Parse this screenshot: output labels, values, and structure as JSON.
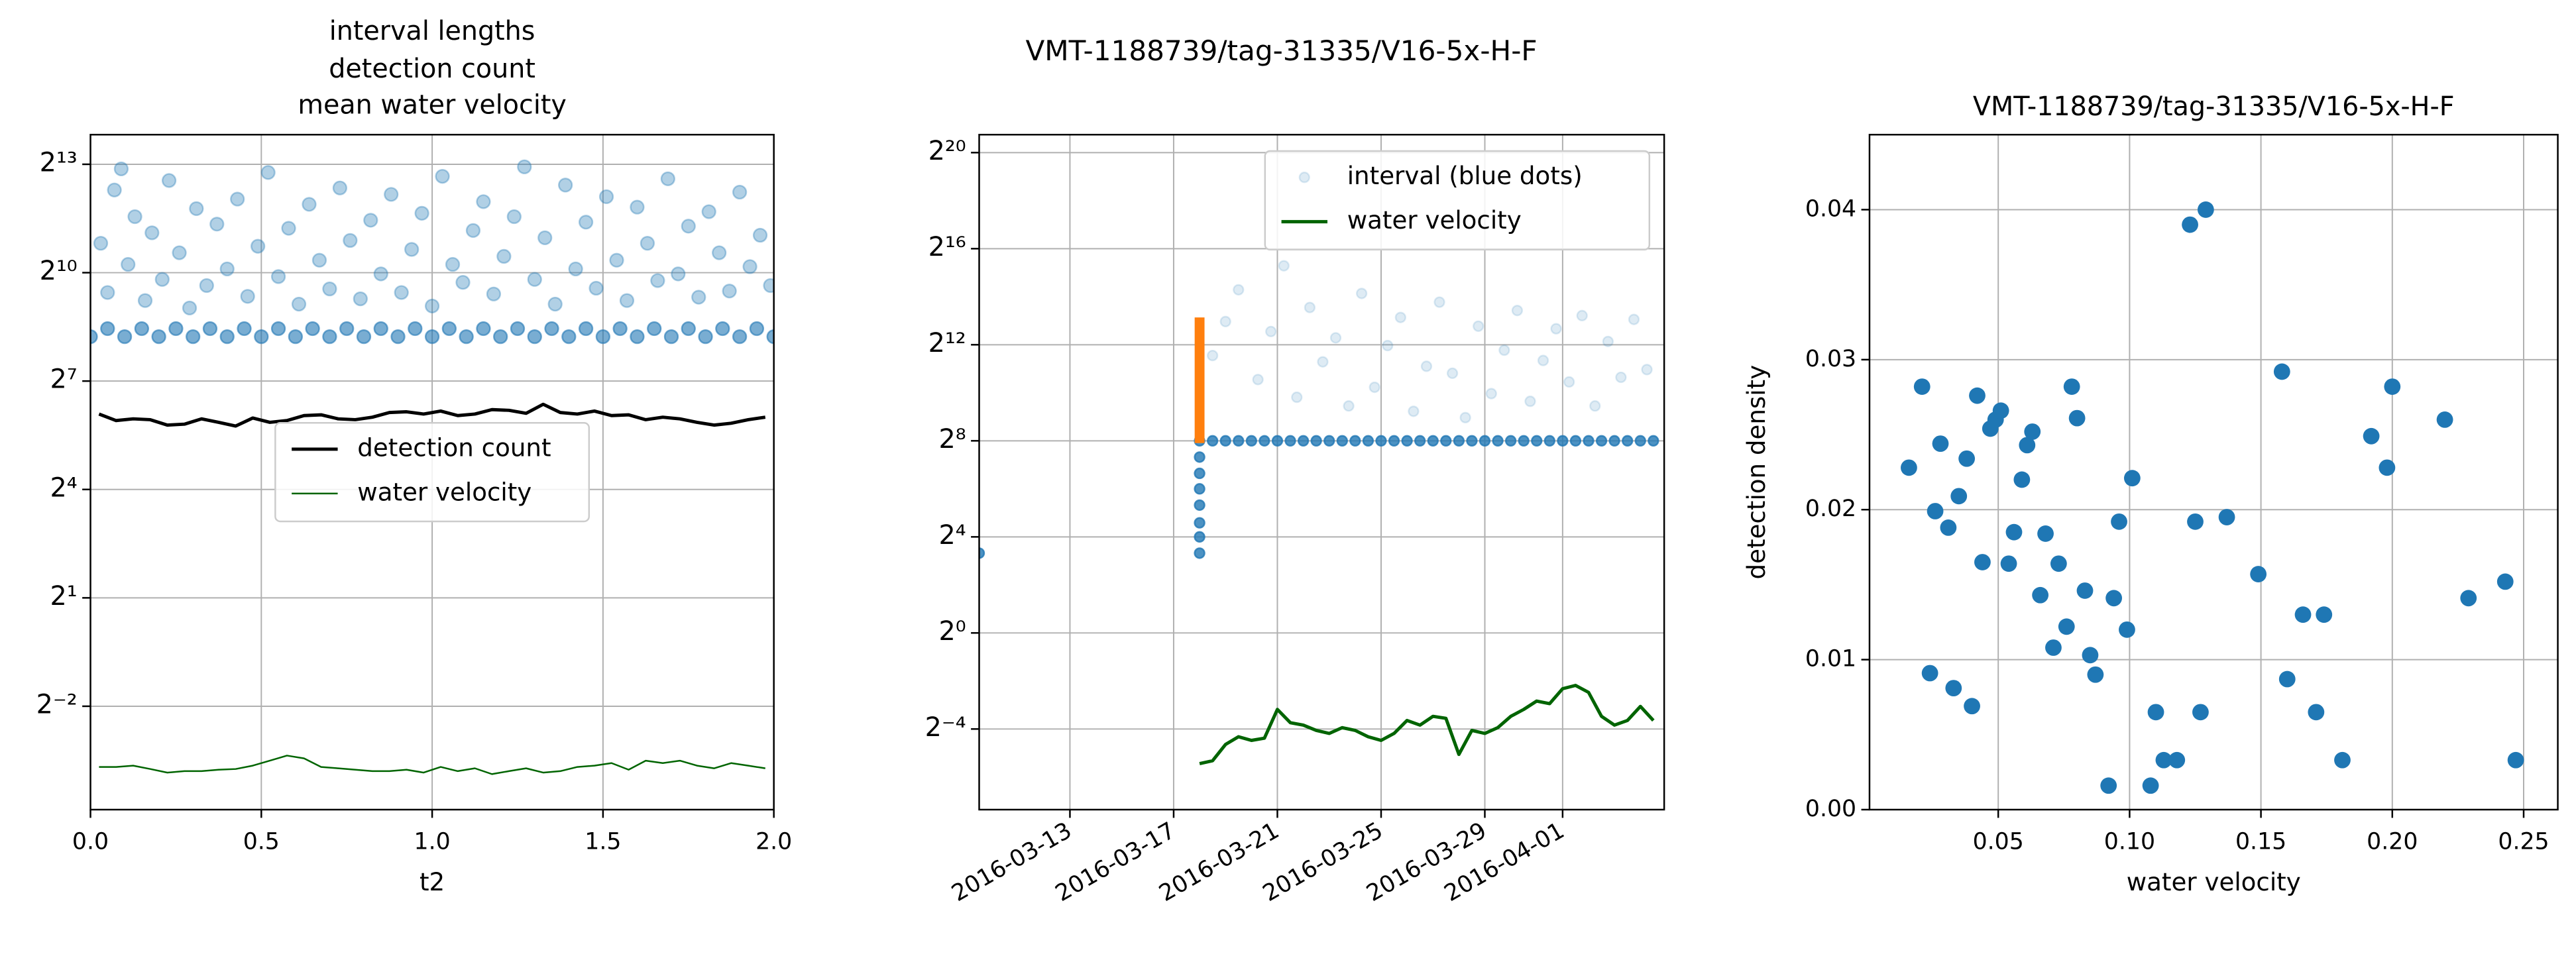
{
  "title": "VMT-1188739/tag-31335/V16-5x-H-F",
  "chart_data": [
    {
      "type": "line",
      "title": [
        "interval lengths",
        "detection count",
        "mean water velocity"
      ],
      "xlabel": "t2",
      "xlim": [
        0,
        2
      ],
      "xticks": [
        {
          "value": 0,
          "label": "0.0"
        },
        0.5,
        {
          "value": 1,
          "label": "1.0"
        },
        1.5,
        {
          "value": 2,
          "label": "2.0"
        }
      ],
      "yscale": "log",
      "log_base": 2,
      "ylim": [
        0.0344,
        14460
      ],
      "yticks": [
        {
          "value": 8192,
          "label": "2¹³"
        },
        {
          "value": 1024,
          "label": "2¹⁰"
        },
        {
          "value": 128,
          "label": "2⁷"
        },
        {
          "value": 16,
          "label": "2⁴"
        },
        {
          "value": 2,
          "label": "2¹"
        },
        {
          "value": 0.25,
          "label": "2⁻²"
        }
      ],
      "grid": true,
      "legend": "center",
      "series": [
        {
          "type": "scatter",
          "color": "#1f77b4",
          "alpha": 0.35,
          "x": [
            0.03,
            0.05,
            0.07,
            0.09,
            0.11,
            0.13,
            0.16,
            0.18,
            0.21,
            0.23,
            0.26,
            0.29,
            0.31,
            0.34,
            0.37,
            0.4,
            0.43,
            0.46,
            0.49,
            0.52,
            0.55,
            0.58,
            0.61,
            0.64,
            0.67,
            0.7,
            0.73,
            0.76,
            0.79,
            0.82,
            0.85,
            0.88,
            0.91,
            0.94,
            0.97,
            1.0,
            1.03,
            1.06,
            1.09,
            1.12,
            1.15,
            1.18,
            1.21,
            1.24,
            1.27,
            1.3,
            1.33,
            1.36,
            1.39,
            1.42,
            1.45,
            1.48,
            1.51,
            1.54,
            1.57,
            1.6,
            1.63,
            1.66,
            1.69,
            1.72,
            1.75,
            1.78,
            1.81,
            1.84,
            1.87,
            1.9,
            1.93,
            1.96,
            1.99
          ],
          "values": [
            1800,
            700,
            5000,
            7500,
            1200,
            3000,
            600,
            2200,
            900,
            6000,
            1500,
            520,
            3500,
            800,
            2600,
            1100,
            4200,
            650,
            1700,
            7000,
            950,
            2400,
            560,
            3800,
            1300,
            750,
            5200,
            1900,
            620,
            2800,
            1000,
            4600,
            700,
            1600,
            3200,
            540,
            6500,
            1200,
            850,
            2300,
            4000,
            680,
            1400,
            3000,
            7800,
            900,
            2000,
            560,
            5500,
            1100,
            2700,
            760,
            4400,
            1300,
            600,
            3600,
            1800,
            880,
            6200,
            1000,
            2500,
            640,
            3300,
            1500,
            720,
            4800,
            1150,
            2100,
            800
          ]
        },
        {
          "type": "scatter",
          "color": "#1f77b4",
          "alpha": 0.6,
          "x": [
            0,
            0.05,
            0.1,
            0.15,
            0.2,
            0.25,
            0.3,
            0.35,
            0.4,
            0.45,
            0.5,
            0.55,
            0.6,
            0.65,
            0.7,
            0.75,
            0.8,
            0.85,
            0.9,
            0.95,
            1,
            1.05,
            1.1,
            1.15,
            1.2,
            1.25,
            1.3,
            1.35,
            1.4,
            1.45,
            1.5,
            1.55,
            1.6,
            1.65,
            1.7,
            1.75,
            1.8,
            1.85,
            1.9,
            1.95,
            2
          ],
          "values": [
            300,
            350,
            300,
            350,
            300,
            350,
            300,
            350,
            300,
            350,
            300,
            350,
            300,
            350,
            300,
            350,
            300,
            350,
            300,
            350,
            300,
            350,
            300,
            350,
            300,
            350,
            300,
            350,
            300,
            350,
            300,
            350,
            300,
            350,
            300,
            350,
            300,
            350,
            300,
            350,
            300
          ]
        },
        {
          "name": "detection count",
          "type": "line",
          "color": "#000000",
          "width": 2,
          "x": [
            0.025,
            0.075,
            0.125,
            0.175,
            0.225,
            0.275,
            0.325,
            0.375,
            0.425,
            0.475,
            0.525,
            0.575,
            0.625,
            0.675,
            0.725,
            0.775,
            0.825,
            0.875,
            0.925,
            0.975,
            1.025,
            1.075,
            1.125,
            1.175,
            1.225,
            1.275,
            1.325,
            1.375,
            1.425,
            1.475,
            1.525,
            1.575,
            1.625,
            1.675,
            1.725,
            1.775,
            1.825,
            1.875,
            1.925,
            1.975
          ],
          "values": [
            68,
            60,
            62,
            61,
            55,
            56,
            62,
            58,
            54,
            63,
            58,
            60,
            66,
            67,
            62,
            61,
            64,
            70,
            71,
            68,
            72,
            66,
            68,
            74,
            73,
            69,
            82,
            70,
            68,
            72,
            66,
            67,
            61,
            64,
            62,
            58,
            55,
            57,
            61,
            64
          ]
        },
        {
          "name": "water velocity",
          "type": "line",
          "color": "#006400",
          "width": 1,
          "x": [
            0.025,
            0.075,
            0.125,
            0.175,
            0.225,
            0.275,
            0.325,
            0.375,
            0.425,
            0.475,
            0.525,
            0.575,
            0.625,
            0.675,
            0.725,
            0.775,
            0.825,
            0.875,
            0.925,
            0.975,
            1.025,
            1.075,
            1.125,
            1.175,
            1.225,
            1.275,
            1.325,
            1.375,
            1.425,
            1.475,
            1.525,
            1.575,
            1.625,
            1.675,
            1.725,
            1.775,
            1.825,
            1.875,
            1.925,
            1.975
          ],
          "values": [
            0.078,
            0.078,
            0.08,
            0.075,
            0.07,
            0.072,
            0.072,
            0.074,
            0.075,
            0.08,
            0.088,
            0.097,
            0.092,
            0.078,
            0.076,
            0.074,
            0.072,
            0.072,
            0.074,
            0.07,
            0.078,
            0.072,
            0.076,
            0.068,
            0.072,
            0.076,
            0.07,
            0.072,
            0.078,
            0.08,
            0.084,
            0.074,
            0.088,
            0.084,
            0.088,
            0.08,
            0.076,
            0.084,
            0.08,
            0.076
          ]
        }
      ]
    },
    {
      "type": "line",
      "xscale": "date",
      "xlim": [
        "2016-03-09T12:00",
        "2016-04-04T22:00"
      ],
      "xticks": [
        "2016-03-13",
        "2016-03-17",
        "2016-03-21",
        "2016-03-25",
        "2016-03-29",
        "2016-04-01"
      ],
      "yscale": "log",
      "log_base": 2,
      "ylim": [
        0.0061,
        1760000
      ],
      "yticks": [
        {
          "value": 1048576,
          "label": "2²⁰"
        },
        {
          "value": 65536,
          "label": "2¹⁶"
        },
        {
          "value": 4096,
          "label": "2¹²"
        },
        {
          "value": 256,
          "label": "2⁸"
        },
        {
          "value": 16,
          "label": "2⁴"
        },
        {
          "value": 1,
          "label": "2⁰"
        },
        {
          "value": 0.0625,
          "label": "2⁻⁴"
        }
      ],
      "grid": true,
      "legend": "upper right",
      "series": [
        {
          "name": "interval (blue dots)",
          "type": "scatter",
          "color": "#1f77b4",
          "alpha": 0.15,
          "x": [
            "2016-03-18T12:00",
            "2016-03-19T00:00",
            "2016-03-19T12:00",
            "2016-03-20T06:00",
            "2016-03-20T18:00",
            "2016-03-21T06:00",
            "2016-03-21T18:00",
            "2016-03-22T06:00",
            "2016-03-22T18:00",
            "2016-03-23T06:00",
            "2016-03-23T18:00",
            "2016-03-24T06:00",
            "2016-03-24T18:00",
            "2016-03-25T06:00",
            "2016-03-25T18:00",
            "2016-03-26T06:00",
            "2016-03-26T18:00",
            "2016-03-27T06:00",
            "2016-03-27T18:00",
            "2016-03-28T06:00",
            "2016-03-28T18:00",
            "2016-03-29T06:00",
            "2016-03-29T18:00",
            "2016-03-30T06:00",
            "2016-03-30T18:00",
            "2016-03-31T06:00",
            "2016-03-31T18:00",
            "2016-04-01T06:00",
            "2016-04-01T18:00",
            "2016-04-02T06:00",
            "2016-04-02T18:00",
            "2016-04-03T06:00",
            "2016-04-03T18:00",
            "2016-04-04T06:00"
          ],
          "values": [
            3000,
            8000,
            20000,
            1500,
            6000,
            40000,
            900,
            12000,
            2500,
            5000,
            700,
            18000,
            1200,
            4000,
            9000,
            600,
            2200,
            14000,
            1800,
            500,
            7000,
            1000,
            3500,
            11000,
            800,
            2600,
            6500,
            1400,
            9500,
            700,
            4500,
            1600,
            8500,
            2000
          ]
        },
        {
          "type": "scatter",
          "color": "#1f77b4",
          "alpha": 0.8,
          "x": [
            "2016-03-09T12:00",
            "2016-03-18T00:00",
            "2016-03-18T00:00",
            "2016-03-18T00:00",
            "2016-03-18T00:00",
            "2016-03-18T00:00",
            "2016-03-18T00:00",
            "2016-03-18T00:00",
            "2016-03-18T00:00",
            "2016-03-18T12:00",
            "2016-03-19T00:00",
            "2016-03-19T12:00",
            "2016-03-20T00:00",
            "2016-03-20T12:00",
            "2016-03-21T00:00",
            "2016-03-21T12:00",
            "2016-03-22T00:00",
            "2016-03-22T12:00",
            "2016-03-23T00:00",
            "2016-03-23T12:00",
            "2016-03-24T00:00",
            "2016-03-24T12:00",
            "2016-03-25T00:00",
            "2016-03-25T12:00",
            "2016-03-26T00:00",
            "2016-03-26T12:00",
            "2016-03-27T00:00",
            "2016-03-27T12:00",
            "2016-03-28T00:00",
            "2016-03-28T12:00",
            "2016-03-29T00:00",
            "2016-03-29T12:00",
            "2016-03-30T00:00",
            "2016-03-30T12:00",
            "2016-03-31T00:00",
            "2016-03-31T12:00",
            "2016-04-01T00:00",
            "2016-04-01T12:00",
            "2016-04-02T00:00",
            "2016-04-02T12:00",
            "2016-04-03T00:00",
            "2016-04-03T12:00",
            "2016-04-04T00:00",
            "2016-04-04T12:00"
          ],
          "values": [
            10,
            10,
            16,
            24,
            40,
            64,
            100,
            160,
            256,
            256,
            256,
            256,
            256,
            256,
            256,
            256,
            256,
            256,
            256,
            256,
            256,
            256,
            256,
            256,
            256,
            256,
            256,
            256,
            256,
            256,
            256,
            256,
            256,
            256,
            256,
            256,
            256,
            256,
            256,
            256,
            256,
            256,
            256,
            256
          ]
        },
        {
          "type": "line",
          "color": "#ff7f0e",
          "width": 6,
          "x": [
            "2016-03-18T00:00",
            "2016-03-18T00:00"
          ],
          "values": [
            9000,
            240
          ]
        },
        {
          "name": "water velocity",
          "type": "line",
          "color": "#006400",
          "width": 2,
          "x": [
            "2016-03-18T00:00",
            "2016-03-18T12:00",
            "2016-03-19T00:00",
            "2016-03-19T12:00",
            "2016-03-20T00:00",
            "2016-03-20T12:00",
            "2016-03-21T00:00",
            "2016-03-21T12:00",
            "2016-03-22T00:00",
            "2016-03-22T12:00",
            "2016-03-23T00:00",
            "2016-03-23T12:00",
            "2016-03-24T00:00",
            "2016-03-24T12:00",
            "2016-03-25T00:00",
            "2016-03-25T12:00",
            "2016-03-26T00:00",
            "2016-03-26T12:00",
            "2016-03-27T00:00",
            "2016-03-27T12:00",
            "2016-03-28T00:00",
            "2016-03-28T12:00",
            "2016-03-29T00:00",
            "2016-03-29T12:00",
            "2016-03-30T00:00",
            "2016-03-30T12:00",
            "2016-03-31T00:00",
            "2016-03-31T12:00",
            "2016-04-01T00:00",
            "2016-04-01T12:00",
            "2016-04-02T00:00",
            "2016-04-02T12:00",
            "2016-04-03T00:00",
            "2016-04-03T12:00",
            "2016-04-04T00:00",
            "2016-04-04T12:00"
          ],
          "values": [
            0.023,
            0.025,
            0.04,
            0.05,
            0.045,
            0.048,
            0.11,
            0.075,
            0.07,
            0.06,
            0.055,
            0.065,
            0.06,
            0.05,
            0.045,
            0.055,
            0.08,
            0.07,
            0.09,
            0.085,
            0.03,
            0.06,
            0.055,
            0.065,
            0.09,
            0.11,
            0.14,
            0.13,
            0.2,
            0.22,
            0.18,
            0.09,
            0.07,
            0.08,
            0.12,
            0.08
          ]
        }
      ]
    },
    {
      "type": "scatter",
      "title": "VMT-1188739/tag-31335/V16-5x-H-F",
      "xlabel": "water velocity",
      "ylabel": "detection density",
      "xlim": [
        0.001,
        0.263
      ],
      "xticks": [
        0.05,
        {
          "value": 0.1,
          "label": "0.10"
        },
        0.15,
        {
          "value": 0.2,
          "label": "0.20"
        },
        0.25
      ],
      "ylim": [
        0,
        0.045
      ],
      "yticks": [
        {
          "value": 0,
          "label": "0.00"
        },
        0.01,
        {
          "value": 0.02,
          "label": "0.02"
        },
        {
          "value": 0.03,
          "label": "0.03"
        },
        {
          "value": 0.04,
          "label": "0.04"
        }
      ],
      "grid": true,
      "series": [
        {
          "type": "scatter",
          "color": "#1f77b4",
          "alpha": 1,
          "x": [
            0.016,
            0.021,
            0.024,
            0.026,
            0.028,
            0.031,
            0.033,
            0.035,
            0.038,
            0.04,
            0.042,
            0.044,
            0.047,
            0.049,
            0.051,
            0.054,
            0.056,
            0.059,
            0.061,
            0.063,
            0.066,
            0.068,
            0.071,
            0.073,
            0.076,
            0.078,
            0.08,
            0.083,
            0.085,
            0.087,
            0.092,
            0.094,
            0.096,
            0.099,
            0.101,
            0.108,
            0.11,
            0.113,
            0.118,
            0.123,
            0.125,
            0.127,
            0.129,
            0.137,
            0.149,
            0.158,
            0.16,
            0.166,
            0.171,
            0.174,
            0.181,
            0.192,
            0.198,
            0.2,
            0.22,
            0.229,
            0.243,
            0.247
          ],
          "values": [
            0.0228,
            0.0282,
            0.0091,
            0.0199,
            0.0244,
            0.0188,
            0.0081,
            0.0209,
            0.0234,
            0.0069,
            0.0276,
            0.0165,
            0.0254,
            0.026,
            0.0266,
            0.0164,
            0.0185,
            0.022,
            0.0243,
            0.0252,
            0.0143,
            0.0184,
            0.0108,
            0.0164,
            0.0122,
            0.0282,
            0.0261,
            0.0146,
            0.0103,
            0.009,
            0.0016,
            0.0141,
            0.0192,
            0.012,
            0.0221,
            0.0016,
            0.0065,
            0.0033,
            0.0033,
            0.039,
            0.0192,
            0.0065,
            0.04,
            0.0195,
            0.0157,
            0.0292,
            0.0087,
            0.013,
            0.0065,
            0.013,
            0.0033,
            0.0249,
            0.0228,
            0.0282,
            0.026,
            0.0141,
            0.0152,
            0.0033
          ]
        }
      ]
    }
  ]
}
